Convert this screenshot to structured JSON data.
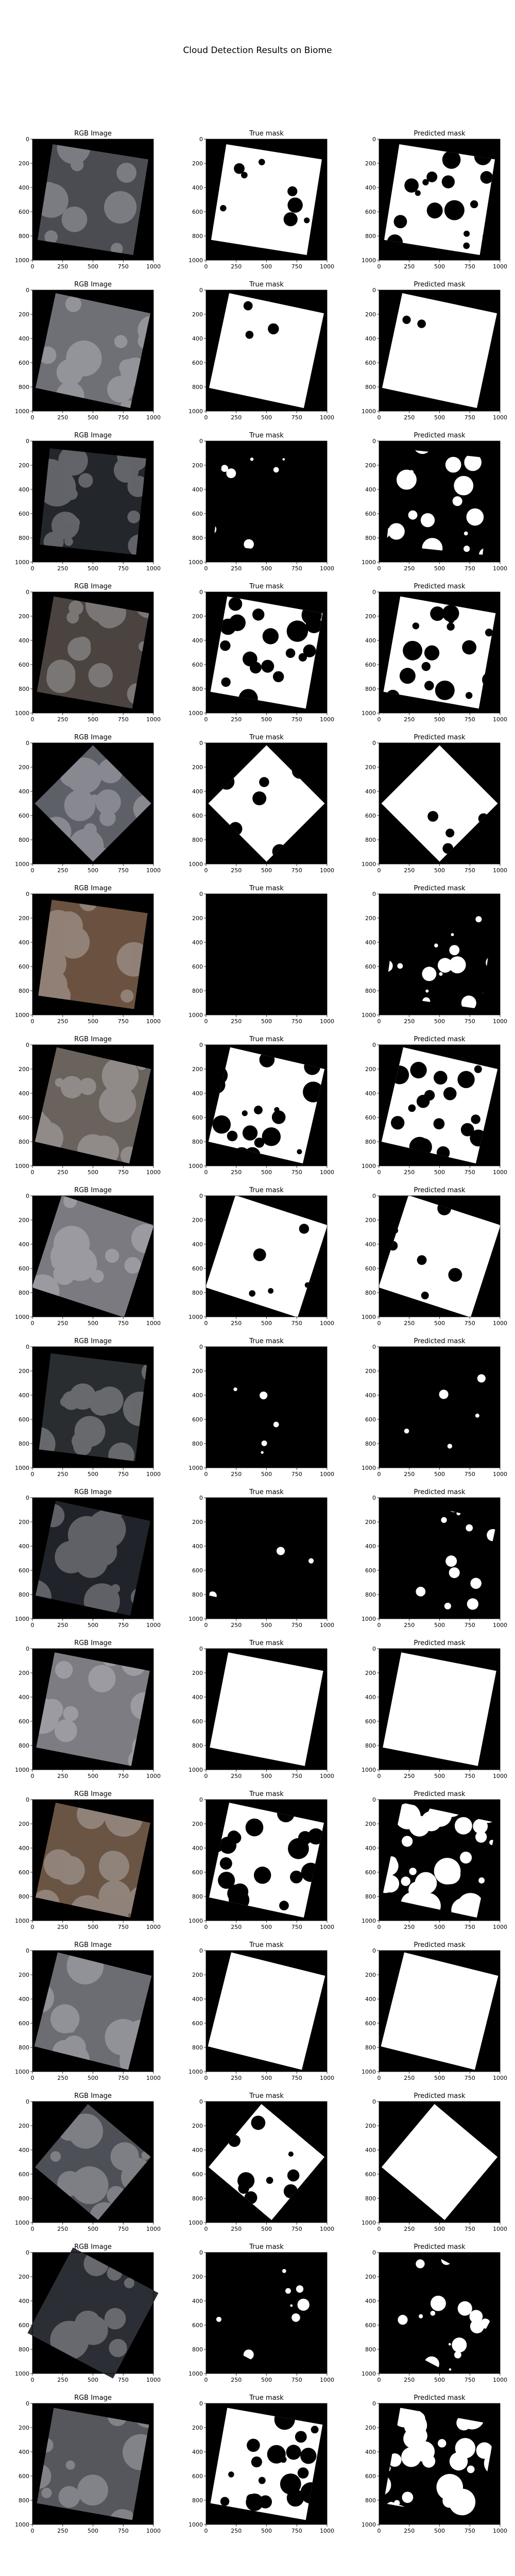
{
  "figure": {
    "title": "Cloud Detection Results on Biome",
    "colors": {
      "background": "#ffffff",
      "mask_fill": "#ffffff",
      "empty": "#000000",
      "axis": "#000000"
    }
  },
  "chart_data": {
    "type": "heatmap",
    "panel_titles": [
      "RGB Image",
      "True mask",
      "Predicted mask"
    ],
    "x_ticks": [
      0,
      250,
      500,
      750,
      1000
    ],
    "y_ticks": [
      0,
      200,
      400,
      600,
      800,
      1000
    ],
    "xlim": [
      0,
      1000
    ],
    "ylim": [
      1000,
      0
    ],
    "rows": [
      {
        "rgb": "#4a4c52",
        "scene_rotation": 9,
        "true_mask_fraction": 0.85,
        "pred_mask_fraction": 0.62
      },
      {
        "rgb": "#6e7076",
        "scene_rotation": 12,
        "true_mask_fraction": 0.98,
        "pred_mask_fraction": 0.97
      },
      {
        "rgb": "#23262b",
        "scene_rotation": 6,
        "true_mask_fraction": 0.05,
        "pred_mask_fraction": 0.3
      },
      {
        "rgb": "#4a433f",
        "scene_rotation": 10,
        "true_mask_fraction": 0.55,
        "pred_mask_fraction": 0.62
      },
      {
        "rgb": "#5e6068",
        "scene_rotation": 45,
        "true_mask_fraction": 0.82,
        "pred_mask_fraction": 0.95
      },
      {
        "rgb": "#6b5240",
        "scene_rotation": 8,
        "true_mask_fraction": 0.0,
        "pred_mask_fraction": 0.22
      },
      {
        "rgb": "#6a625c",
        "scene_rotation": 13,
        "true_mask_fraction": 0.6,
        "pred_mask_fraction": 0.6
      },
      {
        "rgb": "#7a7a80",
        "scene_rotation": 18,
        "true_mask_fraction": 0.92,
        "pred_mask_fraction": 0.9
      },
      {
        "rgb": "#2a2d30",
        "scene_rotation": 7,
        "true_mask_fraction": 0.03,
        "pred_mask_fraction": 0.03
      },
      {
        "rgb": "#202329",
        "scene_rotation": 12,
        "true_mask_fraction": 0.02,
        "pred_mask_fraction": 0.12
      },
      {
        "rgb": "#7c7c82",
        "scene_rotation": 11,
        "true_mask_fraction": 1.0,
        "pred_mask_fraction": 1.0
      },
      {
        "rgb": "#6a5544",
        "scene_rotation": 12,
        "true_mask_fraction": 0.55,
        "pred_mask_fraction": 0.45
      },
      {
        "rgb": "#6c6d72",
        "scene_rotation": 14,
        "true_mask_fraction": 1.0,
        "pred_mask_fraction": 1.0
      },
      {
        "rgb": "#4e5057",
        "scene_rotation": 40,
        "true_mask_fraction": 0.75,
        "pred_mask_fraction": 1.0
      },
      {
        "rgb": "#2c2e35",
        "scene_rotation": 28,
        "true_mask_fraction": 0.1,
        "pred_mask_fraction": 0.18
      },
      {
        "rgb": "#55575c",
        "scene_rotation": 10,
        "true_mask_fraction": 0.55,
        "pred_mask_fraction": 0.45
      }
    ]
  }
}
